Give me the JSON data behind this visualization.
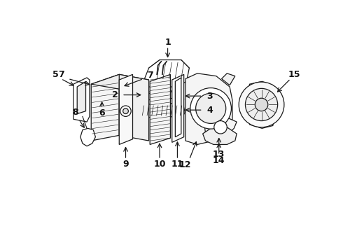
{
  "bg_color": "#ffffff",
  "lc": "#1a1a1a",
  "lw": 0.9,
  "label_fs": 9
}
